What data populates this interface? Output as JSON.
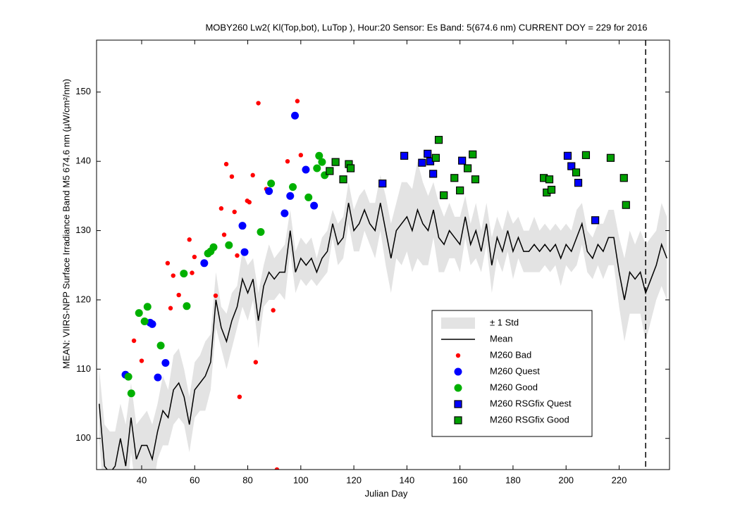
{
  "chart_data": {
    "type": "line",
    "title": "MOBY260   Lw2( Kl(Top,bot), LuTop ),   Hour:20 Sensor: Es Band: 5(674.6 nm)   CURRENT DOY = 229 for 2016",
    "xlabel": "Julian Day",
    "ylabel": "MEAN: VIIRS-NPP Surface Irradiance Band M5 674.6 nm (µW/cm²/nm)",
    "xlim": [
      23,
      239
    ],
    "ylim": [
      95.5,
      157.5
    ],
    "xticks": [
      40,
      60,
      80,
      100,
      120,
      140,
      160,
      180,
      200,
      220
    ],
    "yticks": [
      100,
      110,
      120,
      130,
      140,
      150
    ],
    "vlines": [
      230
    ],
    "legend_loc": "lower right",
    "x": [
      24,
      26,
      28,
      30,
      32,
      34,
      36,
      38,
      40,
      42,
      44,
      46,
      48,
      50,
      52,
      54,
      56,
      58,
      60,
      62,
      64,
      66,
      68,
      70,
      72,
      74,
      76,
      78,
      80,
      82,
      84,
      86,
      88,
      90,
      92,
      94,
      96,
      98,
      100,
      102,
      104,
      106,
      108,
      110,
      112,
      114,
      116,
      118,
      120,
      122,
      124,
      126,
      128,
      130,
      132,
      134,
      136,
      138,
      140,
      142,
      144,
      146,
      148,
      150,
      152,
      154,
      156,
      158,
      160,
      162,
      164,
      166,
      168,
      170,
      172,
      174,
      176,
      178,
      180,
      182,
      184,
      186,
      188,
      190,
      192,
      194,
      196,
      198,
      200,
      202,
      204,
      206,
      208,
      210,
      212,
      214,
      216,
      218,
      220,
      222,
      224,
      226,
      228,
      230,
      232,
      234,
      236,
      238
    ],
    "series": [
      {
        "name": "± 1 Std",
        "kind": "band",
        "color": "#e3e3e3",
        "values": [
          5,
          6,
          6,
          5,
          5,
          6,
          5,
          5,
          4,
          5,
          5,
          4,
          5,
          4,
          5,
          5,
          4,
          4,
          4,
          4,
          5,
          4,
          4,
          3,
          4,
          4,
          3,
          4,
          4,
          3,
          4,
          3,
          4,
          3,
          3,
          4,
          3,
          3,
          3,
          3,
          3,
          2,
          3,
          3,
          2,
          3,
          3,
          3,
          3,
          4,
          3,
          3,
          4,
          4,
          5,
          5,
          4,
          6,
          5,
          6,
          7,
          6,
          5,
          4,
          5,
          4,
          4,
          3,
          4,
          3,
          3,
          4,
          3,
          3,
          4,
          3,
          3,
          3,
          4,
          3,
          3,
          3,
          4,
          3,
          3,
          3,
          3,
          4,
          3,
          3,
          4,
          3,
          3,
          3,
          3,
          4,
          4,
          4,
          5,
          6,
          6,
          5,
          6,
          7,
          6,
          5,
          6,
          6
        ]
      },
      {
        "name": "Mean",
        "kind": "line",
        "color": "#000000",
        "values": [
          105,
          96,
          95,
          96,
          100,
          96,
          103,
          97,
          99,
          99,
          97,
          101,
          104,
          103,
          107,
          108,
          106,
          102,
          107,
          108,
          109,
          111,
          120,
          116,
          114,
          117,
          119,
          123,
          121,
          123,
          117,
          122,
          124,
          123,
          124,
          124,
          130,
          124,
          126,
          125,
          126,
          124,
          126,
          127,
          131,
          128,
          129,
          134,
          130,
          131,
          133,
          131,
          130,
          134,
          130,
          126,
          130,
          131,
          132,
          130,
          133,
          131,
          130,
          133,
          129,
          128,
          130,
          129,
          128,
          132,
          128,
          130,
          127,
          131,
          125,
          129,
          127,
          130,
          127,
          129,
          127,
          127,
          128,
          127,
          128,
          127,
          128,
          126,
          128,
          127,
          129,
          131,
          127,
          126,
          128,
          127,
          129,
          129,
          124,
          120,
          124,
          123,
          124,
          121,
          123,
          125,
          128,
          126
        ]
      },
      {
        "name": "M260 Bad",
        "kind": "scatter",
        "marker": "dot",
        "color": "#ff0000",
        "x": [
          37.1,
          40,
          49.8,
          51.9,
          54,
          50.9,
          58,
          59,
          59.9,
          67.9,
          70,
          71.9,
          71.1,
          74,
          75,
          76,
          76.9,
          79.8,
          80.6,
          81.9,
          83,
          84,
          87,
          89.6,
          91,
          95,
          98.7,
          100
        ],
        "values": [
          114.1,
          111.2,
          125.3,
          123.5,
          120.7,
          118.8,
          128.7,
          123.9,
          126.2,
          120.6,
          133.2,
          139.6,
          129.4,
          137.8,
          132.7,
          126.4,
          106,
          134.3,
          134.1,
          138,
          111,
          148.4,
          136,
          118.5,
          95.5,
          140,
          148.7,
          140.9
        ]
      },
      {
        "name": "M260 Quest",
        "kind": "scatter",
        "marker": "circle",
        "color": "#0000ff",
        "x": [
          33.9,
          43.2,
          44,
          46.1,
          49,
          63.6,
          78,
          78.8,
          88,
          93.9,
          96,
          97.8,
          101.9,
          105
        ],
        "values": [
          109.2,
          116.7,
          116.5,
          108.8,
          110.9,
          125.3,
          130.7,
          126.9,
          135.7,
          132.5,
          135,
          146.6,
          138.8,
          133.6
        ]
      },
      {
        "name": "M260 Good",
        "kind": "scatter",
        "marker": "circle",
        "color": "#00b000",
        "x": [
          35,
          36.1,
          39,
          41.1,
          42.2,
          47.2,
          55.9,
          57,
          65,
          66,
          67.1,
          72.9,
          84.9,
          88.8,
          97,
          102.9,
          106.1,
          106.9,
          108,
          109
        ],
        "values": [
          108.9,
          106.5,
          118.1,
          116.9,
          119,
          113.4,
          123.8,
          119.1,
          126.7,
          127,
          127.6,
          127.9,
          129.8,
          136.8,
          136.3,
          134.8,
          139,
          140.8,
          139.9,
          138
        ]
      },
      {
        "name": "M260 RSGfix Quest",
        "kind": "scatter",
        "marker": "square",
        "color": "#0000ff",
        "x": [
          130.8,
          139,
          145.7,
          147.8,
          148.8,
          149.9,
          160.8,
          200.6,
          202,
          204.6,
          211
        ],
        "values": [
          136.8,
          140.8,
          139.8,
          141.1,
          140,
          138.2,
          140.1,
          140.8,
          139.3,
          136.9,
          131.5
        ]
      },
      {
        "name": "M260 RSGfix Good",
        "kind": "scatter",
        "marker": "square",
        "color": "#00a000",
        "x": [
          113.1,
          110.9,
          116,
          118.1,
          118.8,
          150.9,
          152,
          153.9,
          157.9,
          160,
          162.9,
          164.8,
          165.8,
          191.6,
          192.7,
          193.7,
          194.5,
          203.8,
          207.5,
          216.8,
          221.8,
          222.6
        ],
        "values": [
          139.9,
          138.6,
          137.4,
          139.6,
          139,
          140.5,
          143.1,
          135.1,
          137.6,
          135.8,
          139,
          141,
          137.4,
          137.6,
          135.5,
          137.4,
          135.9,
          138.4,
          140.9,
          140.5,
          137.6,
          133.7
        ]
      }
    ]
  }
}
